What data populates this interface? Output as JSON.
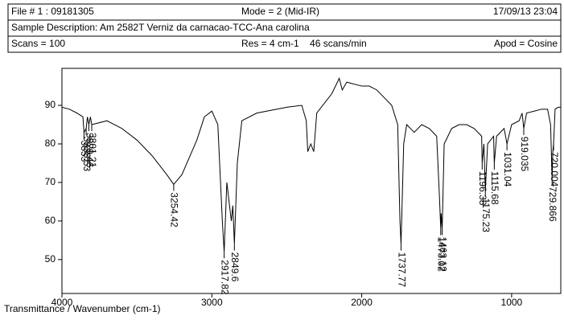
{
  "header": {
    "file": "File # 1 : 09181305",
    "mode": "Mode = 2 (Mid-IR)",
    "date": "17/09/13 23:04",
    "description": "Sample Description: Am 2582T Verniz da carnacao-TCC-Ana carolina",
    "scans": "Scans = 100",
    "resolution": "Res = 4 cm-1    46 scans/min",
    "apod": "Apod = Cosine"
  },
  "chart_data": {
    "type": "line",
    "x_label": "Transmittance / Wavenumber (cm-1)",
    "xlim": [
      4000,
      672
    ],
    "ylim": [
      41.2,
      99.6
    ],
    "xticks": [
      4000,
      3000,
      2000,
      1000
    ],
    "yticks": [
      50,
      60,
      70,
      80,
      90
    ],
    "x": [
      4000,
      3950,
      3900,
      3860,
      3853,
      3838.53,
      3830,
      3820.46,
      3810,
      3801.21,
      3700,
      3600,
      3500,
      3400,
      3300,
      3254.42,
      3200,
      3100,
      3050,
      3000,
      2960,
      2930,
      2917.82,
      2900,
      2870,
      2860,
      2849.6,
      2830,
      2800,
      2700,
      2500,
      2400,
      2370,
      2360,
      2340,
      2320,
      2300,
      2200,
      2150,
      2130,
      2100,
      2000,
      1950,
      1900,
      1850,
      1800,
      1760,
      1745,
      1737.77,
      1720,
      1700,
      1650,
      1600,
      1550,
      1500,
      1480,
      1473.02,
      1470,
      1463.12,
      1450,
      1400,
      1350,
      1300,
      1250,
      1200,
      1196.38,
      1185,
      1175.23,
      1160,
      1120,
      1115.68,
      1100,
      1050,
      1031.04,
      1000,
      950,
      930,
      919.035,
      900,
      850,
      800,
      760,
      740,
      729.866,
      725,
      720.004,
      710,
      690,
      672
    ],
    "series": [
      {
        "color": "#000000",
        "values": [
          89.5,
          89,
          88,
          87,
          83,
          84,
          87,
          85,
          87,
          85,
          86,
          84,
          81,
          77,
          72,
          69.5,
          72,
          81,
          87,
          88.5,
          85,
          60,
          52,
          70,
          60,
          64,
          54,
          75,
          86,
          88,
          89.5,
          90,
          86,
          78,
          80,
          78,
          88,
          93,
          97,
          94,
          96,
          95,
          95,
          94,
          92,
          90,
          85,
          60,
          54,
          80,
          85,
          83,
          85,
          84,
          82,
          65,
          58,
          62,
          58,
          80,
          84,
          85,
          85,
          84,
          82,
          75,
          80,
          68,
          80,
          82,
          75,
          82,
          84,
          80,
          85,
          86,
          88,
          84,
          88,
          88.5,
          89,
          89,
          85,
          71,
          78,
          80,
          89,
          89.5,
          89.5
        ]
      }
    ],
    "peaks": [
      {
        "x": 3853,
        "y": 83
      },
      {
        "x": 3838.53,
        "y": 84
      },
      {
        "x": 3820.46,
        "y": 85
      },
      {
        "x": 3801.21,
        "y": 85
      },
      {
        "x": 3254.42,
        "y": 69.5
      },
      {
        "x": 2917.82,
        "y": 52
      },
      {
        "x": 2849.6,
        "y": 54
      },
      {
        "x": 1737.77,
        "y": 54
      },
      {
        "x": 1473.02,
        "y": 58
      },
      {
        "x": 1463.12,
        "y": 58
      },
      {
        "x": 1196.38,
        "y": 75
      },
      {
        "x": 1175.23,
        "y": 68
      },
      {
        "x": 1115.68,
        "y": 75
      },
      {
        "x": 1031.04,
        "y": 80
      },
      {
        "x": 919.035,
        "y": 84
      },
      {
        "x": 729.866,
        "y": 71
      },
      {
        "x": 720.004,
        "y": 80
      }
    ]
  }
}
